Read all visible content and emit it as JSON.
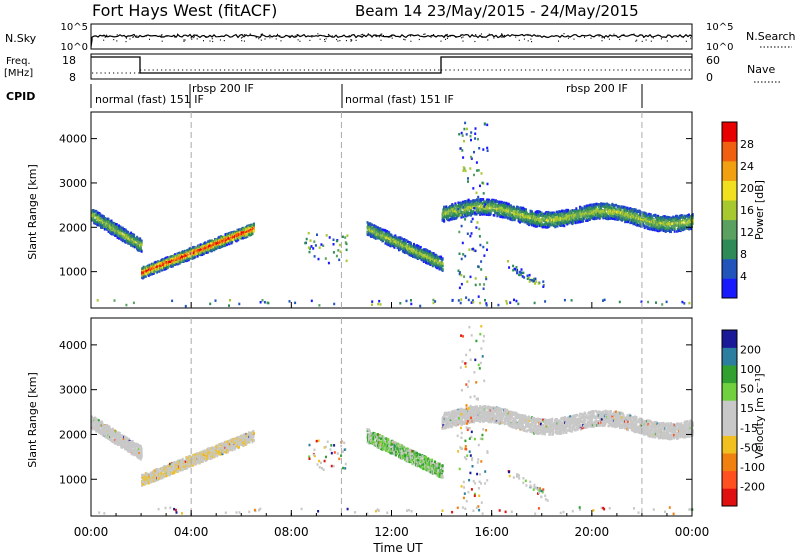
{
  "header": {
    "radar": "Fort Hays West (fitACF)",
    "beam_info": "Beam 14 23/May/2015 - 24/May/2015"
  },
  "nsky_panel": {
    "label": "N.Sky",
    "y_ticks": [
      "10^5",
      "10^0"
    ],
    "right_label": "N.Search",
    "right_ticks": [
      "10^5",
      "10^0"
    ]
  },
  "freq_panel": {
    "label_line1": "Freq.",
    "label_line2": "[MHz]",
    "y_ticks": [
      "18",
      "8"
    ],
    "right_label": "Nave",
    "right_ticks": [
      "60",
      "0"
    ]
  },
  "cpid": {
    "label": "CPID",
    "modes": [
      "normal (fast) 151 IF",
      "rbsp 200 IF",
      "normal (fast) 151 IF",
      "rbsp 200 IF"
    ]
  },
  "colors": {
    "power": [
      "#1a1aff",
      "#2255bb",
      "#2e8b57",
      "#5aa060",
      "#a8c830",
      "#f0e020",
      "#f0a010",
      "#f06010",
      "#e80000"
    ],
    "velocity": [
      "#e01010",
      "#ff5020",
      "#f08010",
      "#f0c020",
      "#c8c8c8",
      "#c8c8c8",
      "#70d040",
      "#30a030",
      "#2c7ea0",
      "#1a1a99"
    ]
  },
  "chart_data": [
    {
      "type": "heatmap",
      "name": "power-panel",
      "xlabel": "Time UT",
      "ylabel": "Slant Range [km]",
      "x_ticks": [
        "00:00",
        "04:00",
        "08:00",
        "12:00",
        "16:00",
        "20:00",
        "00:00"
      ],
      "xlim_hours": [
        0,
        24
      ],
      "ylim_km": [
        180,
        4600
      ],
      "y_ticks": [
        1000,
        2000,
        3000,
        4000
      ],
      "colorbar": {
        "label": "Power [dB]",
        "ticks": [
          "28",
          "24",
          "20",
          "16",
          "12",
          "8",
          "4"
        ],
        "range": [
          0,
          30
        ]
      },
      "echo_bands_hours_km": [
        {
          "t_start": 0,
          "t_end": 2,
          "range_start": 2300,
          "range_end": 1600,
          "width_km": 300
        },
        {
          "t_start": 2,
          "t_end": 6.5,
          "range_start": 1000,
          "range_end": 2000,
          "width_km": 250
        },
        {
          "t_start": 11,
          "t_end": 14,
          "range_start": 2000,
          "range_end": 1200,
          "width_km": 300
        },
        {
          "t_start": 14,
          "t_end": 24,
          "range_start": 2400,
          "range_end": 2200,
          "width_km": 350
        }
      ]
    },
    {
      "type": "heatmap",
      "name": "velocity-panel",
      "xlabel": "Time UT",
      "ylabel": "Slant Range [km]",
      "x_ticks": [
        "00:00",
        "04:00",
        "08:00",
        "12:00",
        "16:00",
        "20:00",
        "00:00"
      ],
      "xlim_hours": [
        0,
        24
      ],
      "ylim_km": [
        180,
        4600
      ],
      "y_ticks": [
        1000,
        2000,
        3000,
        4000
      ],
      "colorbar": {
        "label": "Velocity [m s⁻¹]",
        "ticks": [
          "200",
          "100",
          "50",
          "15",
          "-15",
          "-50",
          "-100",
          "-200"
        ],
        "range": [
          -250,
          250
        ]
      }
    }
  ],
  "axes_text": {
    "x_label": "Time UT",
    "y_label": "Slant Range [km]"
  }
}
